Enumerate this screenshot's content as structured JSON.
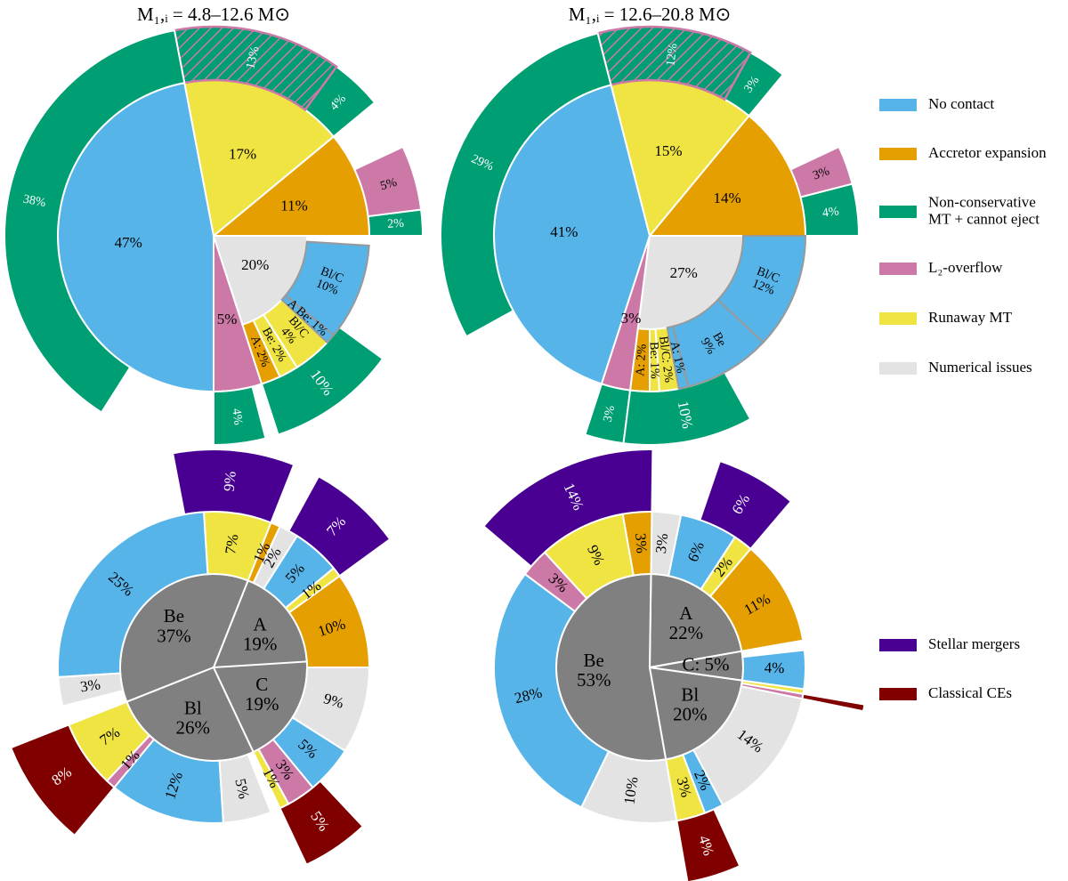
{
  "legend": [
    {
      "label": [
        "No contact"
      ],
      "color": "#56b4e9"
    },
    {
      "label": [
        "Accretor expansion"
      ],
      "color": "#e69f00"
    },
    {
      "label": [
        "Non-conservative",
        "MT + cannot eject"
      ],
      "color": "#009e73"
    },
    {
      "label": [
        "L₂-overflow"
      ],
      "color": "#cc79a7"
    },
    {
      "label": [
        "Runaway MT"
      ],
      "color": "#f0e442"
    },
    {
      "label": [
        "Numerical issues"
      ],
      "color": "#e3e3e3"
    }
  ],
  "legend2": [
    {
      "label": [
        "Stellar mergers"
      ],
      "color": "#490092"
    },
    {
      "label": [
        "Classical CEs"
      ],
      "color": "#800000"
    }
  ],
  "chart_data": [
    {
      "type": "sunburst",
      "title": "M₁,ᵢ = 4.8–12.6 M⊙",
      "wedges": [
        {
          "value": 11,
          "label": [
            "11%"
          ],
          "color": "#e69f00",
          "children": [
            {
              "value": 2,
              "label": [
                "2%"
              ],
              "color": "#009e73"
            },
            {
              "value": 5,
              "label": [
                "5%"
              ],
              "color": "#cc79a7"
            }
          ]
        },
        {
          "value": 17,
          "label": [
            "17%"
          ],
          "color": "#f0e442",
          "children": [
            {
              "value": 4,
              "label": [
                "4%"
              ],
              "color": "#009e73"
            },
            {
              "value": 13,
              "label": [
                "13%"
              ],
              "color": "#009e73",
              "hatch": "#cc79a7"
            }
          ]
        },
        {
          "value": 47,
          "label": [
            "47%"
          ],
          "color": "#56b4e9",
          "children": [
            {
              "value": 38,
              "label": [
                "38%"
              ],
              "color": "#009e73"
            }
          ]
        },
        {
          "value": 5,
          "label": [
            "5%"
          ],
          "color": "#cc79a7",
          "children": [
            {
              "value": 4,
              "label": [
                "4%"
              ],
              "color": "#009e73"
            }
          ]
        },
        {
          "value": 20,
          "label": [
            "20%"
          ],
          "color": "#e3e3e3",
          "children": [
            {
              "value": 2,
              "label": [
                "A: 2%"
              ],
              "color": "#e69f00",
              "children": [
                {
                  "value": 10,
                  "label": [
                    "10%"
                  ],
                  "color": "#009e73"
                }
              ]
            },
            {
              "value": 2,
              "label": [
                "Be: 2%"
              ],
              "color": "#f0e442"
            },
            {
              "value": 4,
              "label": [
                "Bl/C",
                "4%"
              ],
              "color": "#f0e442"
            },
            {
              "value": 1,
              "label": [
                "A Be: 1%"
              ],
              "color": "#56b4e9"
            },
            {
              "value": 10,
              "label": [
                "Bl/C",
                "10%"
              ],
              "color": "#56b4e9"
            }
          ]
        }
      ]
    },
    {
      "type": "sunburst",
      "title": "M₁,ᵢ = 12.6–20.8 M⊙",
      "wedges": [
        {
          "value": 14,
          "label": [
            "14%"
          ],
          "color": "#e69f00",
          "children": [
            {
              "value": 4,
              "label": [
                "4%"
              ],
              "color": "#009e73"
            },
            {
              "value": 3,
              "label": [
                "3%"
              ],
              "color": "#cc79a7"
            }
          ]
        },
        {
          "value": 15,
          "label": [
            "15%"
          ],
          "color": "#f0e442",
          "children": [
            {
              "value": 3,
              "label": [
                "3%"
              ],
              "color": "#009e73"
            },
            {
              "value": 12,
              "label": [
                "12%"
              ],
              "color": "#009e73",
              "hatch": "#cc79a7"
            }
          ]
        },
        {
          "value": 41,
          "label": [
            "41%"
          ],
          "color": "#56b4e9",
          "children": [
            {
              "value": 29,
              "label": [
                "29%"
              ],
              "color": "#009e73"
            }
          ]
        },
        {
          "value": 3,
          "label": [
            "3%"
          ],
          "color": "#cc79a7",
          "children": [
            {
              "value": 3,
              "label": [
                "3%"
              ],
              "color": "#009e73"
            }
          ]
        },
        {
          "value": 27,
          "label": [
            "27%"
          ],
          "color": "#e3e3e3",
          "children": [
            {
              "value": 2,
              "label": [
                "A: 2%"
              ],
              "color": "#e69f00",
              "children": [
                {
                  "value": 10,
                  "label": [
                    "10%"
                  ],
                  "color": "#009e73"
                }
              ]
            },
            {
              "value": 1,
              "label": [
                "Be: 1%"
              ],
              "color": "#f0e442"
            },
            {
              "value": 2,
              "label": [
                "Bl/C: 2%"
              ],
              "color": "#f0e442"
            },
            {
              "value": 1,
              "label": [
                "A: 1%"
              ],
              "color": "#56b4e9"
            },
            {
              "value": 9,
              "label": [
                "Be",
                "9%"
              ],
              "color": "#56b4e9"
            },
            {
              "value": 12,
              "label": [
                "Bl/C",
                "12%"
              ],
              "color": "#56b4e9"
            }
          ]
        }
      ]
    },
    {
      "type": "sunburst",
      "wedges": [
        {
          "value": 19,
          "label": [
            "A",
            "19%"
          ],
          "color": "#808080",
          "children": [
            {
              "value": 10,
              "label": [
                "10%"
              ],
              "color": "#e69f00"
            },
            {
              "value": 1,
              "label": [
                "1%"
              ],
              "color": "#f0e442",
              "children": [
                {
                  "value": 7,
                  "label": [
                    "7%"
                  ],
                  "color": "#490092"
                }
              ]
            },
            {
              "value": 5,
              "label": [
                "5%"
              ],
              "color": "#56b4e9"
            },
            {
              "value": 2,
              "label": [
                "2%"
              ],
              "color": "#e3e3e3"
            },
            {
              "value": 1,
              "label": [
                "1%"
              ],
              "color": "#e69f00"
            }
          ]
        },
        {
          "value": 37,
          "label": [
            "Be",
            "37%"
          ],
          "color": "#808080",
          "children": [
            {
              "value": 7,
              "label": [
                "7%"
              ],
              "color": "#f0e442",
              "children": [
                {
                  "value": 9,
                  "label": [
                    "9%"
                  ],
                  "color": "#490092"
                }
              ]
            },
            {
              "value": 25,
              "label": [
                "25%"
              ],
              "color": "#56b4e9"
            },
            {
              "value": 3,
              "label": [
                "3%"
              ],
              "color": "#e3e3e3"
            }
          ]
        },
        {
          "value": 26,
          "label": [
            "Bl",
            "26%"
          ],
          "color": "#808080",
          "children": [
            {
              "value": 7,
              "label": [
                "7%"
              ],
              "color": "#f0e442",
              "children": [
                {
                  "value": 8,
                  "label": [
                    "8%"
                  ],
                  "color": "#800000"
                }
              ]
            },
            {
              "value": 1,
              "label": [
                "1%"
              ],
              "color": "#cc79a7"
            },
            {
              "value": 12,
              "label": [
                "12%"
              ],
              "color": "#56b4e9"
            },
            {
              "value": 5,
              "label": [
                "5%"
              ],
              "color": "#e3e3e3"
            }
          ]
        },
        {
          "value": 19,
          "label": [
            "C",
            "19%"
          ],
          "color": "#808080",
          "children": [
            {
              "value": 1,
              "label": [
                "1%"
              ],
              "color": "#f0e442",
              "children": [
                {
                  "value": 5,
                  "label": [
                    "5%"
                  ],
                  "color": "#800000"
                }
              ]
            },
            {
              "value": 3,
              "label": [
                "3%"
              ],
              "color": "#cc79a7"
            },
            {
              "value": 5,
              "label": [
                "5%"
              ],
              "color": "#56b4e9"
            },
            {
              "value": 9,
              "label": [
                "9%"
              ],
              "color": "#e3e3e3"
            }
          ]
        }
      ]
    },
    {
      "type": "sunburst",
      "wedges": [
        {
          "value": 22,
          "label": [
            "A",
            "22%"
          ],
          "color": "#808080",
          "children": [
            {
              "value": 11,
              "label": [
                "11%"
              ],
              "color": "#e69f00"
            },
            {
              "value": 2,
              "label": [
                "2%"
              ],
              "color": "#f0e442",
              "children": [
                {
                  "value": 6,
                  "label": [
                    "6%"
                  ],
                  "color": "#490092"
                }
              ]
            },
            {
              "value": 6,
              "label": [
                "6%"
              ],
              "color": "#56b4e9"
            },
            {
              "value": 3,
              "label": [
                "3%"
              ],
              "color": "#e3e3e3"
            }
          ]
        },
        {
          "value": 53,
          "label": [
            "Be",
            "53%"
          ],
          "color": "#808080",
          "children": [
            {
              "value": 3,
              "label": [
                "3%"
              ],
              "color": "#e69f00",
              "children": [
                {
                  "value": 14,
                  "label": [
                    "14%"
                  ],
                  "color": "#490092"
                }
              ]
            },
            {
              "value": 9,
              "label": [
                "9%"
              ],
              "color": "#f0e442"
            },
            {
              "value": 3,
              "label": [
                "3%"
              ],
              "color": "#cc79a7"
            },
            {
              "value": 28,
              "label": [
                "28%"
              ],
              "color": "#56b4e9"
            },
            {
              "value": 10,
              "label": [
                "10%"
              ],
              "color": "#e3e3e3"
            }
          ]
        },
        {
          "value": 20,
          "label": [
            "Bl",
            "20%"
          ],
          "color": "#808080",
          "children": [
            {
              "value": 3,
              "label": [
                "3%"
              ],
              "color": "#f0e442",
              "children": [
                {
                  "value": 4,
                  "label": [
                    "4%"
                  ],
                  "color": "#800000"
                }
              ]
            },
            {
              "value": 2,
              "label": [
                "2%"
              ],
              "color": "#56b4e9"
            },
            {
              "value": 14,
              "label": [
                "14%"
              ],
              "color": "#e3e3e3"
            },
            {
              "value": 0.5,
              "color": "#cc79a7",
              "children": [
                {
                  "value": 0.5,
                  "color": "#800000"
                }
              ]
            },
            {
              "value": 0.5,
              "color": "#f0e442"
            }
          ]
        },
        {
          "value": 5,
          "label": [
            "C: 5%"
          ],
          "color": "#808080",
          "children": [
            {
              "value": 4,
              "label": [
                "4%"
              ],
              "color": "#56b4e9"
            }
          ]
        }
      ]
    }
  ]
}
